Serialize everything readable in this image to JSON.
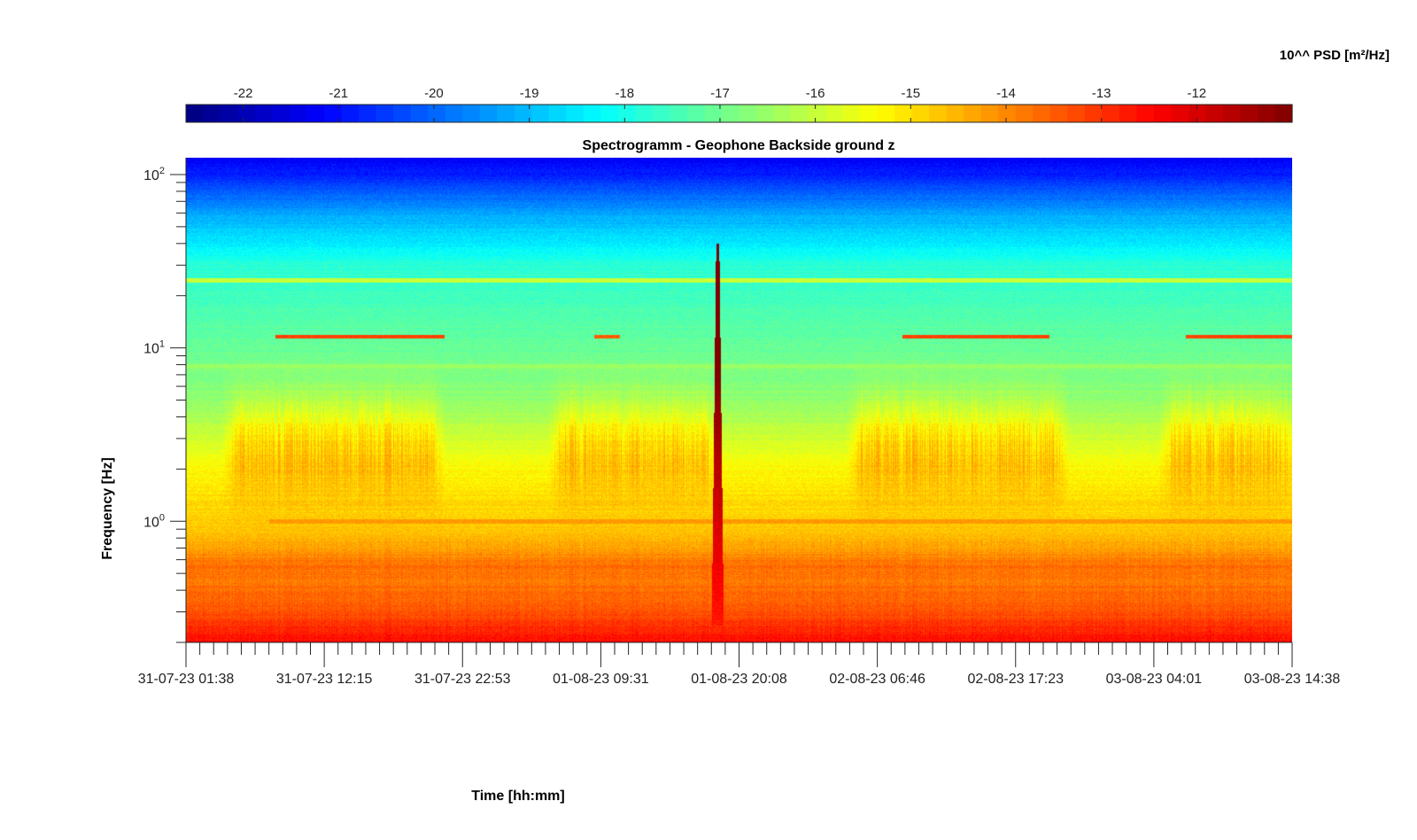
{
  "chart_data": {
    "type": "heatmap",
    "title": "Spectrogramm - Geophone Backside ground z",
    "xlabel": "Time [hh:mm]",
    "ylabel": "Frequency [Hz]",
    "colorbar_label": "10^^ PSD [m²/Hz]",
    "colormap": "jet",
    "colorbar_range": [
      -22.6,
      -11.0
    ],
    "colorbar_ticks": [
      -22,
      -21,
      -20,
      -19,
      -18,
      -17,
      -16,
      -15,
      -14,
      -13,
      -12
    ],
    "colorbar_tick_labels": [
      "-22",
      "-21",
      "-20",
      "-19",
      "-18",
      "-17",
      "-16",
      "-15",
      "-14",
      "-13",
      "-12"
    ],
    "yscale": "log",
    "ylim": [
      0.2,
      125
    ],
    "yticks": [
      {
        "value": 1,
        "base": "10",
        "exp": "0"
      },
      {
        "value": 10,
        "base": "10",
        "exp": "1"
      },
      {
        "value": 100,
        "base": "10",
        "exp": "2"
      }
    ],
    "xlim": [
      "31-07-23 01:38",
      "03-08-23 14:38"
    ],
    "xtick_labels": [
      "31-07-23 01:38",
      "31-07-23 12:15",
      "31-07-23 22:53",
      "01-08-23 09:31",
      "01-08-23 20:08",
      "02-08-23 06:46",
      "02-08-23 17:23",
      "03-08-23 04:01",
      "03-08-23 14:38"
    ],
    "features": {
      "background_psd_by_frequency": [
        {
          "freq_hz": 0.2,
          "psd_log10": -12.5
        },
        {
          "freq_hz": 0.3,
          "psd_log10": -13.4
        },
        {
          "freq_hz": 0.45,
          "psd_log10": -13.8
        },
        {
          "freq_hz": 0.55,
          "psd_log10": -13.7
        },
        {
          "freq_hz": 0.8,
          "psd_log10": -14.6
        },
        {
          "freq_hz": 2,
          "psd_log10": -15.3
        },
        {
          "freq_hz": 5,
          "psd_log10": -16.6
        },
        {
          "freq_hz": 10,
          "psd_log10": -17.1
        },
        {
          "freq_hz": 30,
          "psd_log10": -17.8
        },
        {
          "freq_hz": 60,
          "psd_log10": -19.3
        },
        {
          "freq_hz": 100,
          "psd_log10": -20.8
        },
        {
          "freq_hz": 125,
          "psd_log10": -21.2
        }
      ],
      "daytime_active_periods": [
        {
          "start": "31-07-23 05:00",
          "end": "31-07-23 21:00"
        },
        {
          "start": "01-08-23 06:00",
          "end": "01-08-23 18:00"
        },
        {
          "start": "02-08-23 05:00",
          "end": "02-08-23 21:00"
        },
        {
          "start": "03-08-23 05:00",
          "end": "03-08-23 14:38"
        }
      ],
      "narrowband_lines": [
        {
          "freq_hz": 11.6,
          "start": "31-07-23 08:30",
          "end": "31-07-23 21:30",
          "psd_log10": -13.2
        },
        {
          "freq_hz": 11.6,
          "start": "01-08-23 09:00",
          "end": "01-08-23 11:00",
          "psd_log10": -13.5
        },
        {
          "freq_hz": 11.6,
          "start": "02-08-23 08:40",
          "end": "02-08-23 20:00",
          "psd_log10": -13.2
        },
        {
          "freq_hz": 11.6,
          "start": "03-08-23 06:30",
          "end": "03-08-23 14:38",
          "psd_log10": -13.2
        },
        {
          "freq_hz": 1.0,
          "start": "31-07-23 08:00",
          "end": "03-08-23 14:38",
          "psd_log10": -14.2
        },
        {
          "freq_hz": 24.5,
          "start": "31-07-23 01:38",
          "end": "03-08-23 14:38",
          "psd_log10": -16.0
        },
        {
          "freq_hz": 7.8,
          "start": "31-07-23 01:38",
          "end": "03-08-23 14:38",
          "psd_log10": -16.5
        }
      ],
      "transient_event": {
        "time": "01-08-23 18:30",
        "freq_range_hz": [
          0.25,
          40
        ],
        "peak_psd_log10": -12.0
      }
    }
  }
}
